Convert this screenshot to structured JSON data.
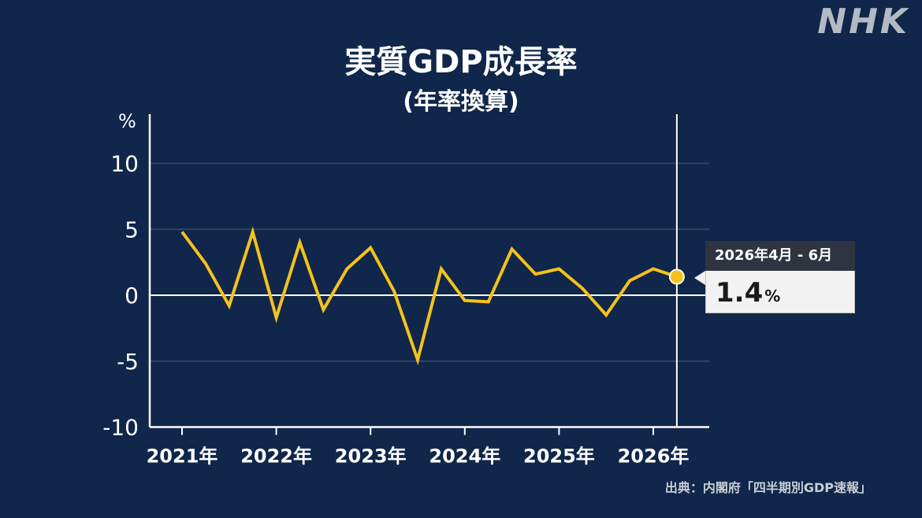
{
  "brand": {
    "logo_text": "NHK"
  },
  "title": "実質GDP成長率",
  "subtitle": "(年率換算)",
  "source": "出典：内閣府「四半期別GDP速報」",
  "callout": {
    "period": "2026年4月 - 6月",
    "value": "1.4",
    "unit": "%"
  },
  "colors": {
    "background": "#10264a",
    "line": "#f5c21b",
    "axis": "#ffffff",
    "grid": "#2f4466",
    "callout_header": "#2e3440",
    "callout_body": "#f2f2f2"
  },
  "chart_data": {
    "type": "line",
    "title": "実質GDP成長率",
    "subtitle": "(年率換算)",
    "ylabel": "%",
    "xlabel": "",
    "ylim": [
      -10,
      13
    ],
    "yticks": [
      -10,
      -5,
      0,
      5,
      10
    ],
    "ytick_labels": [
      "-10",
      "-5",
      "0",
      "5",
      "10"
    ],
    "xticks": [
      "2021年",
      "2022年",
      "2023年",
      "2024年",
      "2025年",
      "2026年"
    ],
    "grid": true,
    "series": [
      {
        "name": "",
        "points": [
          {
            "x": "2021年1-3月",
            "y": 4.8
          },
          {
            "x": "2021年4-6月",
            "y": 2.4
          },
          {
            "x": "2021年7-9月",
            "y": -0.8
          },
          {
            "x": "2021年10-12月",
            "y": 4.8
          },
          {
            "x": "2022年1-3月",
            "y": -1.7
          },
          {
            "x": "2022年4-6月",
            "y": 4.0
          },
          {
            "x": "2022年7-9月",
            "y": -1.1
          },
          {
            "x": "2022年10-12月",
            "y": 2.0
          },
          {
            "x": "2023年1-3月",
            "y": 3.6
          },
          {
            "x": "2023年4-6月",
            "y": 0.3
          },
          {
            "x": "2023年7-9月",
            "y": -4.9
          },
          {
            "x": "2023年10-12月",
            "y": 2.0
          },
          {
            "x": "2024年1-3月",
            "y": -0.4
          },
          {
            "x": "2024年4-6月",
            "y": -0.5
          },
          {
            "x": "2024年7-9月",
            "y": 3.5
          },
          {
            "x": "2024年10-12月",
            "y": 1.6
          },
          {
            "x": "2025年1-3月",
            "y": 2.0
          },
          {
            "x": "2025年4-6月",
            "y": 0.5
          },
          {
            "x": "2025年7-9月",
            "y": -1.5
          },
          {
            "x": "2025年10-12月",
            "y": 1.1
          },
          {
            "x": "2026年1-3月",
            "y": 2.0
          },
          {
            "x": "2026年4-6月",
            "y": 1.4
          }
        ]
      }
    ],
    "highlight": {
      "x": "2026年4-6月",
      "y": 1.4
    }
  }
}
